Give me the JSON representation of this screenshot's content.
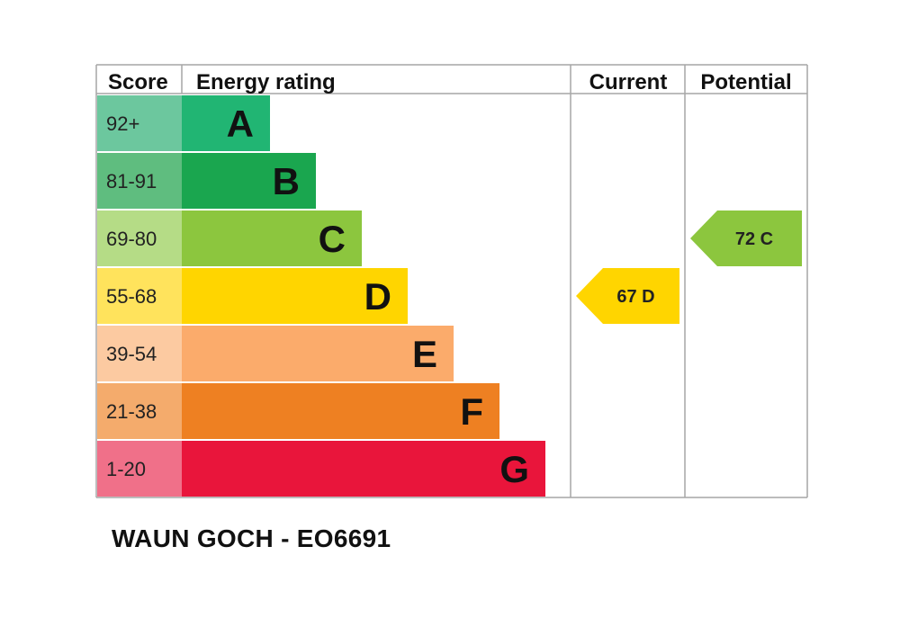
{
  "table_headers": {
    "score": "Score",
    "energy_rating": "Energy rating",
    "current": "Current",
    "potential": "Potential"
  },
  "chart_data": {
    "type": "bar",
    "bands": [
      {
        "letter": "A",
        "score": "92+",
        "color": "#21b573",
        "score_color": "#6cc79e"
      },
      {
        "letter": "B",
        "score": "81-91",
        "color": "#1aa64f",
        "score_color": "#5fbd7f"
      },
      {
        "letter": "C",
        "score": "69-80",
        "color": "#8cc63e",
        "score_color": "#b5dc86"
      },
      {
        "letter": "D",
        "score": "55-68",
        "color": "#ffd500",
        "score_color": "#ffe35c"
      },
      {
        "letter": "E",
        "score": "39-54",
        "color": "#fbab6b",
        "score_color": "#fccaa1"
      },
      {
        "letter": "F",
        "score": "21-38",
        "color": "#ee8022",
        "score_color": "#f4ab6c"
      },
      {
        "letter": "G",
        "score": "1-20",
        "color": "#e9153b",
        "score_color": "#f07089"
      }
    ],
    "current": {
      "value": 67,
      "band": "D",
      "label": "67  D",
      "color": "#ffd500"
    },
    "potential": {
      "value": 72,
      "band": "C",
      "label": "72  C",
      "color": "#8cc63e"
    }
  },
  "caption": "WAUN GOCH - EO6691"
}
